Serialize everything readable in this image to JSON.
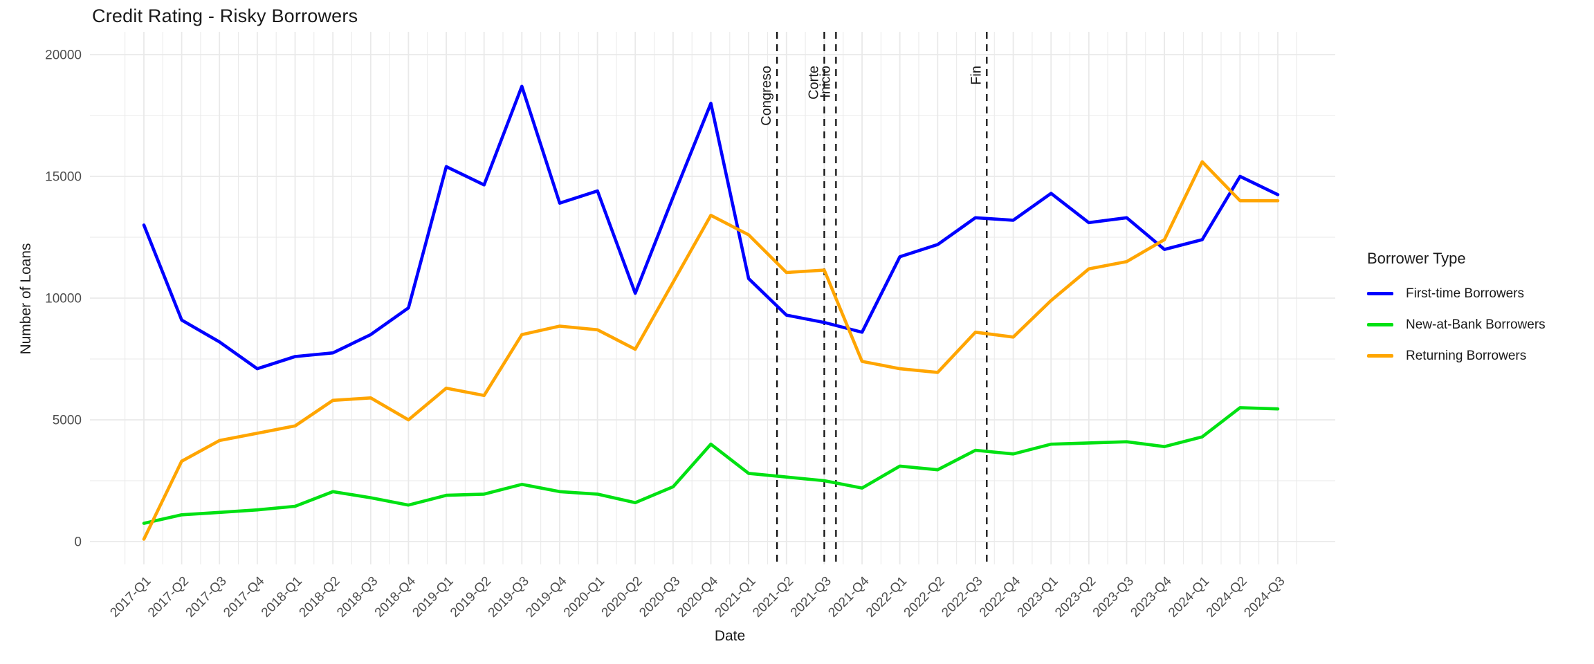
{
  "title": "Credit Rating - Risky Borrowers",
  "axes": {
    "x_label": "Date",
    "y_label": "Number of Loans",
    "y_ticks": [
      0,
      5000,
      10000,
      15000,
      20000
    ],
    "tick_color": "#4d4d4d",
    "grid_color": "#e9e9e9"
  },
  "legend": {
    "title": "Borrower Type"
  },
  "events": [
    {
      "label": "Congreso",
      "x_index": 16.75
    },
    {
      "label": "Corte",
      "x_index": 18.0
    },
    {
      "label": "Inicio",
      "x_index": 18.31
    },
    {
      "label": "Fin",
      "x_index": 22.3
    }
  ],
  "chart_data": {
    "type": "line",
    "title": "Credit Rating - Risky Borrowers",
    "xlabel": "Date",
    "ylabel": "Number of Loans",
    "ylim": [
      0,
      20000
    ],
    "grid": true,
    "legend_position": "right",
    "legend_title": "Borrower Type",
    "categories": [
      "2017-Q1",
      "2017-Q2",
      "2017-Q3",
      "2017-Q4",
      "2018-Q1",
      "2018-Q2",
      "2018-Q3",
      "2018-Q4",
      "2019-Q1",
      "2019-Q2",
      "2019-Q3",
      "2019-Q4",
      "2020-Q1",
      "2020-Q2",
      "2020-Q3",
      "2020-Q4",
      "2021-Q1",
      "2021-Q2",
      "2021-Q3",
      "2021-Q4",
      "2022-Q1",
      "2022-Q2",
      "2022-Q3",
      "2022-Q4",
      "2023-Q1",
      "2023-Q2",
      "2023-Q3",
      "2023-Q4",
      "2024-Q1",
      "2024-Q2",
      "2024-Q3"
    ],
    "series": [
      {
        "name": "First-time Borrowers",
        "color": "#0000FF",
        "values": [
          13000,
          9100,
          8200,
          7100,
          7600,
          7750,
          8500,
          9600,
          15400,
          14650,
          18700,
          13900,
          14400,
          10200,
          14150,
          18000,
          10800,
          9300,
          9000,
          8600,
          11700,
          12200,
          13300,
          13200,
          14300,
          13100,
          13300,
          12000,
          12400,
          15000,
          14250
        ]
      },
      {
        "name": "New-at-Bank Borrowers",
        "color": "#00E112",
        "values": [
          750,
          1100,
          1200,
          1300,
          1450,
          2050,
          1800,
          1500,
          1900,
          1950,
          2350,
          2050,
          1950,
          1600,
          2250,
          4000,
          2800,
          2650,
          2500,
          2200,
          3100,
          2950,
          3750,
          3600,
          4000,
          4050,
          4100,
          3900,
          4300,
          5500,
          5450
        ]
      },
      {
        "name": "Returning Borrowers",
        "color": "#FFA500",
        "values": [
          100,
          3300,
          4150,
          4450,
          4750,
          5800,
          5900,
          5000,
          6300,
          6000,
          8500,
          8850,
          8700,
          7900,
          10650,
          13400,
          12600,
          11050,
          11150,
          7400,
          7100,
          6950,
          8600,
          8400,
          9900,
          11200,
          11500,
          12400,
          15600,
          14000,
          14000
        ]
      }
    ],
    "event_lines": [
      {
        "label": "Congreso",
        "x_index": 16.75,
        "style": "dashed"
      },
      {
        "label": "Corte",
        "x_index": 18.0,
        "style": "dashed"
      },
      {
        "label": "Inicio",
        "x_index": 18.31,
        "style": "dashed"
      },
      {
        "label": "Fin",
        "x_index": 22.3,
        "style": "dashed"
      }
    ]
  }
}
